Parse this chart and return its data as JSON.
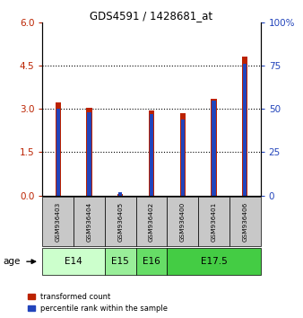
{
  "title": "GDS4591 / 1428681_at",
  "samples": [
    "GSM936403",
    "GSM936404",
    "GSM936405",
    "GSM936402",
    "GSM936400",
    "GSM936401",
    "GSM936406"
  ],
  "transformed_count": [
    3.22,
    3.05,
    0.04,
    2.95,
    2.85,
    3.35,
    4.8
  ],
  "percentile_rank": [
    50,
    48,
    2,
    47,
    44,
    55,
    76
  ],
  "age_groups": [
    {
      "label": "E14",
      "indices": [
        0,
        1
      ],
      "color": "#ccffcc"
    },
    {
      "label": "E15",
      "indices": [
        2
      ],
      "color": "#99ee99"
    },
    {
      "label": "E16",
      "indices": [
        3
      ],
      "color": "#66dd66"
    },
    {
      "label": "E17.5",
      "indices": [
        4,
        5,
        6
      ],
      "color": "#44cc44"
    }
  ],
  "ylim_left": [
    0,
    6
  ],
  "ylim_right": [
    0,
    100
  ],
  "yticks_left": [
    0,
    1.5,
    3,
    4.5,
    6
  ],
  "yticks_right": [
    0,
    25,
    50,
    75,
    100
  ],
  "bar_width": 0.18,
  "blue_bar_width": 0.12,
  "red_color": "#bb2200",
  "blue_color": "#2244bb",
  "grid_color": "#000000",
  "sample_area_color": "#c8c8c8",
  "bg_color": "#ffffff"
}
